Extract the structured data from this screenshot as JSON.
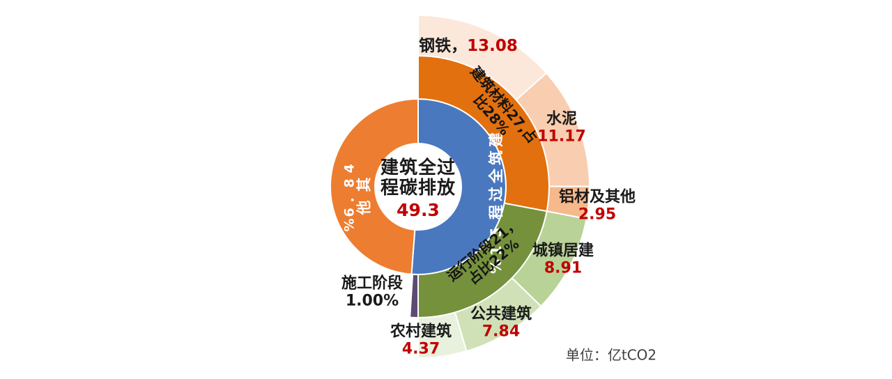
{
  "chart_data": {
    "type": "sunburst",
    "title": "建筑全过程碳排放",
    "unit_note": "单位：亿tCO2",
    "total_value": 49.3,
    "value_color": "#C00000",
    "text_color": "#1a1a1a",
    "center": {
      "title_line1": "建筑全过",
      "title_line2": "程碳排放",
      "value": "49.3"
    },
    "rings": [
      {
        "name": "inner",
        "segments": [
          {
            "name": "建筑全过程",
            "percent": 51,
            "color": "#4A78BF",
            "label": "建筑全过程51%"
          },
          {
            "name": "其他",
            "percent": 48.6,
            "color": "#ED7D31",
            "label_name": "其他",
            "label_value": "48.6%"
          }
        ]
      },
      {
        "name": "middle",
        "segments": [
          {
            "name": "建筑材料",
            "value": 27,
            "percent": 28,
            "color": "#E2700E",
            "label_line1": "建筑材料27,占",
            "label_line2": "比28%"
          },
          {
            "name": "运行阶段",
            "value": 21,
            "percent": 22,
            "color": "#75913C",
            "label_line1": "运行阶段21，",
            "label_line2": "占比22%"
          },
          {
            "name": "施工阶段",
            "value": 0.5,
            "percent": 1,
            "color": "#5C4A73",
            "label_name": "施工阶段",
            "label_value": "1.00%"
          }
        ]
      },
      {
        "name": "outer",
        "segments": [
          {
            "name": "钢铁",
            "parent": "建筑材料",
            "value": 13.08,
            "color": "#FBE8DA",
            "label_name": "钢铁，",
            "label_value": "13.08"
          },
          {
            "name": "水泥",
            "parent": "建筑材料",
            "value": 11.17,
            "color": "#F8CDB0",
            "label_name": "水泥",
            "label_value": "11.17"
          },
          {
            "name": "铝材及其他",
            "parent": "建筑材料",
            "value": 2.95,
            "color": "#F5B98C",
            "label_name": "铝材及其他",
            "label_value": "2.95"
          },
          {
            "name": "城镇居建",
            "parent": "运行阶段",
            "value": 8.91,
            "color": "#B9D297",
            "label_name": "城镇居建",
            "label_value": "8.91"
          },
          {
            "name": "公共建筑",
            "parent": "运行阶段",
            "value": 7.84,
            "color": "#D0E1B7",
            "label_name": "公共建筑",
            "label_value": "7.84"
          },
          {
            "name": "农村建筑",
            "parent": "运行阶段",
            "value": 4.37,
            "color": "#E8F1DE",
            "label_name": "农村建筑",
            "label_value": "4.37"
          }
        ]
      }
    ]
  }
}
